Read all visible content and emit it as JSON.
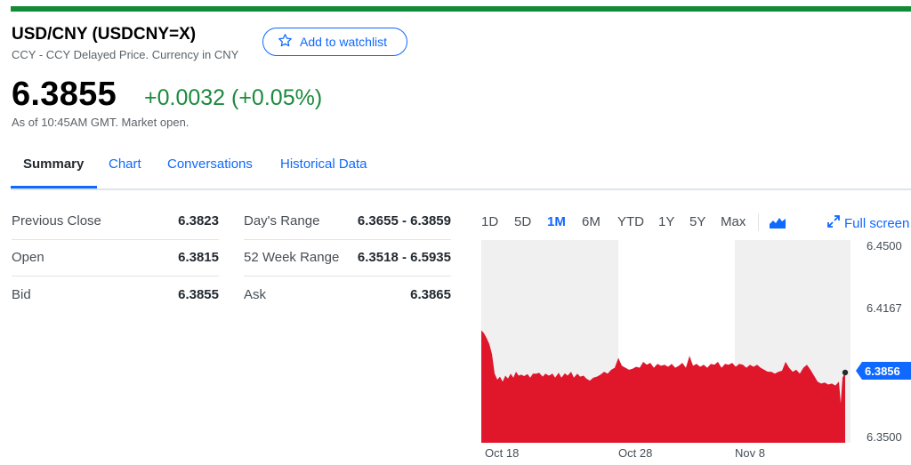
{
  "header": {
    "title": "USD/CNY (USDCNY=X)",
    "subtitle": "CCY - CCY Delayed Price. Currency in CNY",
    "watchlist_label": "Add to watchlist"
  },
  "quote": {
    "price": "6.3855",
    "change": "+0.0032 (+0.05%)",
    "as_of": "As of 10:45AM GMT. Market open.",
    "change_color": "#1a8a3d"
  },
  "tabs": [
    {
      "label": "Summary",
      "active": true
    },
    {
      "label": "Chart"
    },
    {
      "label": "Conversations"
    },
    {
      "label": "Historical Data"
    }
  ],
  "stats_left": [
    {
      "label": "Previous Close",
      "value": "6.3823"
    },
    {
      "label": "Open",
      "value": "6.3815"
    },
    {
      "label": "Bid",
      "value": "6.3855"
    }
  ],
  "stats_right": [
    {
      "label": "Day's Range",
      "value": "6.3655 - 6.3859"
    },
    {
      "label": "52 Week Range",
      "value": "6.3518 - 6.5935"
    },
    {
      "label": "Ask",
      "value": "6.3865"
    }
  ],
  "chart_controls": {
    "ranges": [
      "1D",
      "5D",
      "1M",
      "6M",
      "YTD",
      "1Y",
      "5Y",
      "Max"
    ],
    "active_range": "1M",
    "chart_type_icon": "mountain-chart-icon",
    "fullscreen_label": "Full screen",
    "fullscreen_icon": "expand-arrows-icon"
  },
  "chart_data": {
    "type": "area",
    "series_color": "#e0162b",
    "ylim": [
      6.35,
      6.45
    ],
    "y_ticks": [
      "6.4500",
      "6.4167",
      "6.3500"
    ],
    "x_ticks": [
      "Oct 18",
      "Oct 28",
      "Nov 8"
    ],
    "current_value": "6.3856",
    "current_value_color": "#0f69ff",
    "points": [
      [
        0,
        6.407
      ],
      [
        3,
        6.4055
      ],
      [
        6,
        6.403
      ],
      [
        9,
        6.4
      ],
      [
        12,
        6.395
      ],
      [
        15,
        6.385
      ],
      [
        18,
        6.382
      ],
      [
        21,
        6.3835
      ],
      [
        24,
        6.381
      ],
      [
        27,
        6.384
      ],
      [
        30,
        6.3825
      ],
      [
        33,
        6.385
      ],
      [
        36,
        6.383
      ],
      [
        39,
        6.386
      ],
      [
        42,
        6.384
      ],
      [
        45,
        6.3845
      ],
      [
        48,
        6.3838
      ],
      [
        52,
        6.3848
      ],
      [
        55,
        6.383
      ],
      [
        58,
        6.385
      ],
      [
        62,
        6.385
      ],
      [
        65,
        6.3855
      ],
      [
        69,
        6.3835
      ],
      [
        72,
        6.385
      ],
      [
        76,
        6.384
      ],
      [
        80,
        6.385
      ],
      [
        83,
        6.383
      ],
      [
        87,
        6.3855
      ],
      [
        90,
        6.383
      ],
      [
        94,
        6.3852
      ],
      [
        97,
        6.384
      ],
      [
        101,
        6.386
      ],
      [
        104,
        6.383
      ],
      [
        108,
        6.385
      ],
      [
        111,
        6.3835
      ],
      [
        115,
        6.384
      ],
      [
        118,
        6.3825
      ],
      [
        122,
        6.3815
      ],
      [
        126,
        6.383
      ],
      [
        130,
        6.3835
      ],
      [
        134,
        6.3845
      ],
      [
        138,
        6.386
      ],
      [
        142,
        6.385
      ],
      [
        146,
        6.387
      ],
      [
        150,
        6.388
      ],
      [
        154,
        6.393
      ],
      [
        158,
        6.389
      ],
      [
        162,
        6.388
      ],
      [
        166,
        6.387
      ],
      [
        170,
        6.3875
      ],
      [
        174,
        6.3885
      ],
      [
        178,
        6.388
      ],
      [
        182,
        6.391
      ],
      [
        186,
        6.3895
      ],
      [
        190,
        6.3905
      ],
      [
        194,
        6.388
      ],
      [
        198,
        6.39
      ],
      [
        202,
        6.389
      ],
      [
        206,
        6.3895
      ],
      [
        210,
        6.3885
      ],
      [
        214,
        6.39
      ],
      [
        218,
        6.388
      ],
      [
        222,
        6.389
      ],
      [
        226,
        6.3905
      ],
      [
        230,
        6.388
      ],
      [
        234,
        6.394
      ],
      [
        238,
        6.389
      ],
      [
        242,
        6.39
      ],
      [
        246,
        6.3885
      ],
      [
        250,
        6.3895
      ],
      [
        254,
        6.388
      ],
      [
        258,
        6.39
      ],
      [
        262,
        6.3895
      ],
      [
        266,
        6.391
      ],
      [
        270,
        6.388
      ],
      [
        274,
        6.39
      ],
      [
        278,
        6.3895
      ],
      [
        282,
        6.3905
      ],
      [
        286,
        6.3885
      ],
      [
        290,
        6.39
      ],
      [
        294,
        6.3895
      ],
      [
        298,
        6.388
      ],
      [
        302,
        6.3895
      ],
      [
        306,
        6.3885
      ],
      [
        310,
        6.3895
      ],
      [
        314,
        6.388
      ],
      [
        318,
        6.387
      ],
      [
        322,
        6.386
      ],
      [
        326,
        6.386
      ],
      [
        330,
        6.385
      ],
      [
        334,
        6.386
      ],
      [
        338,
        6.3865
      ],
      [
        342,
        6.391
      ],
      [
        346,
        6.388
      ],
      [
        350,
        6.386
      ],
      [
        354,
        6.387
      ],
      [
        358,
        6.385
      ],
      [
        362,
        6.388
      ],
      [
        366,
        6.3895
      ],
      [
        370,
        6.387
      ],
      [
        374,
        6.384
      ],
      [
        378,
        6.381
      ],
      [
        382,
        6.38
      ],
      [
        386,
        6.3805
      ],
      [
        390,
        6.3795
      ],
      [
        394,
        6.38
      ],
      [
        398,
        6.379
      ],
      [
        402,
        6.381
      ],
      [
        404,
        6.37
      ],
      [
        406,
        6.383
      ],
      [
        409,
        6.3856
      ]
    ],
    "max_x": 409
  }
}
